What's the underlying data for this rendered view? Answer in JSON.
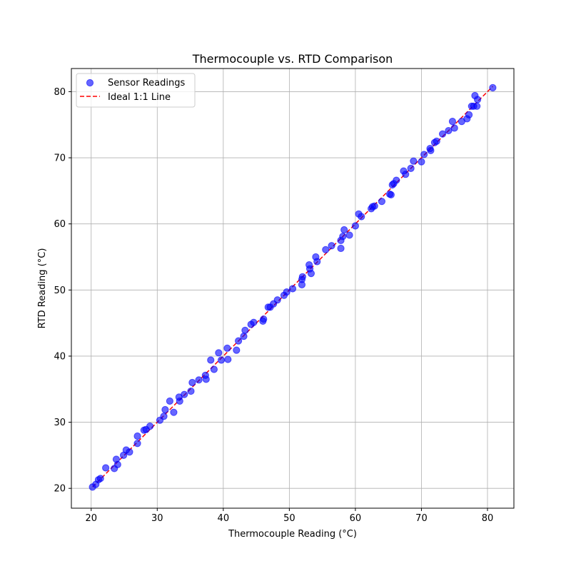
{
  "chart_data": {
    "type": "scatter",
    "title": "Thermocouple vs. RTD Comparison",
    "xlabel": "Thermocouple Reading (°C)",
    "ylabel": "RTD Reading (°C)",
    "xlim": [
      17.0,
      84.0
    ],
    "ylim": [
      17.0,
      83.5
    ],
    "xticks": [
      20,
      30,
      40,
      50,
      60,
      70,
      80
    ],
    "yticks": [
      20,
      30,
      40,
      50,
      60,
      70,
      80
    ],
    "grid": true,
    "legend_position": "top-left",
    "series": [
      {
        "name": "Sensor Readings",
        "kind": "scatter",
        "color": "#0000ff",
        "points": [
          [
            20.2,
            20.2
          ],
          [
            20.7,
            20.6
          ],
          [
            21.1,
            21.3
          ],
          [
            21.4,
            21.5
          ],
          [
            22.2,
            23.1
          ],
          [
            23.5,
            23.0
          ],
          [
            23.8,
            24.4
          ],
          [
            24.0,
            23.6
          ],
          [
            24.9,
            25.0
          ],
          [
            25.3,
            25.8
          ],
          [
            25.8,
            25.5
          ],
          [
            27.0,
            26.8
          ],
          [
            27.0,
            27.9
          ],
          [
            28.0,
            28.8
          ],
          [
            28.3,
            28.9
          ],
          [
            28.9,
            29.4
          ],
          [
            30.4,
            30.3
          ],
          [
            31.0,
            30.9
          ],
          [
            31.2,
            31.9
          ],
          [
            31.9,
            33.2
          ],
          [
            32.5,
            31.5
          ],
          [
            33.3,
            33.8
          ],
          [
            33.4,
            33.2
          ],
          [
            34.1,
            34.2
          ],
          [
            35.1,
            34.7
          ],
          [
            35.3,
            36.0
          ],
          [
            36.3,
            36.4
          ],
          [
            37.3,
            37.1
          ],
          [
            37.4,
            36.5
          ],
          [
            38.1,
            39.4
          ],
          [
            38.6,
            38.0
          ],
          [
            39.3,
            40.5
          ],
          [
            39.7,
            39.4
          ],
          [
            40.6,
            41.2
          ],
          [
            40.7,
            39.5
          ],
          [
            42.0,
            40.9
          ],
          [
            42.3,
            42.3
          ],
          [
            43.1,
            43.0
          ],
          [
            43.3,
            43.9
          ],
          [
            44.2,
            44.8
          ],
          [
            44.6,
            45.1
          ],
          [
            46.0,
            45.3
          ],
          [
            46.1,
            45.6
          ],
          [
            46.8,
            47.4
          ],
          [
            47.1,
            47.4
          ],
          [
            47.6,
            47.9
          ],
          [
            48.2,
            48.5
          ],
          [
            49.2,
            49.2
          ],
          [
            49.6,
            49.7
          ],
          [
            50.5,
            50.2
          ],
          [
            51.9,
            50.8
          ],
          [
            51.9,
            51.6
          ],
          [
            52.0,
            52.0
          ],
          [
            53.0,
            53.8
          ],
          [
            53.1,
            53.2
          ],
          [
            53.3,
            52.5
          ],
          [
            54.0,
            55.0
          ],
          [
            54.2,
            54.3
          ],
          [
            55.5,
            56.1
          ],
          [
            56.4,
            56.7
          ],
          [
            57.8,
            56.3
          ],
          [
            57.8,
            57.5
          ],
          [
            58.1,
            58.1
          ],
          [
            58.3,
            59.1
          ],
          [
            59.1,
            58.3
          ],
          [
            60.0,
            59.7
          ],
          [
            60.5,
            61.5
          ],
          [
            60.9,
            61.1
          ],
          [
            62.4,
            62.3
          ],
          [
            62.6,
            62.6
          ],
          [
            62.9,
            62.7
          ],
          [
            64.0,
            63.4
          ],
          [
            65.2,
            64.5
          ],
          [
            65.4,
            64.4
          ],
          [
            65.6,
            65.9
          ],
          [
            65.8,
            66.1
          ],
          [
            66.2,
            66.6
          ],
          [
            67.3,
            68.0
          ],
          [
            67.6,
            67.5
          ],
          [
            68.4,
            68.4
          ],
          [
            68.8,
            69.5
          ],
          [
            70.0,
            69.4
          ],
          [
            70.4,
            70.5
          ],
          [
            71.3,
            71.4
          ],
          [
            71.4,
            71.1
          ],
          [
            72.0,
            72.3
          ],
          [
            72.3,
            72.5
          ],
          [
            73.2,
            73.6
          ],
          [
            74.1,
            74.1
          ],
          [
            74.7,
            75.5
          ],
          [
            75.0,
            74.5
          ],
          [
            76.1,
            75.5
          ],
          [
            76.9,
            75.9
          ],
          [
            77.2,
            76.5
          ],
          [
            77.6,
            77.8
          ],
          [
            77.9,
            77.8
          ],
          [
            78.1,
            79.4
          ],
          [
            78.4,
            77.8
          ],
          [
            78.5,
            78.8
          ],
          [
            80.8,
            80.6
          ]
        ]
      },
      {
        "name": "Ideal 1:1 Line",
        "kind": "line",
        "color": "#ff0000",
        "dashed": true,
        "points": [
          [
            20.2,
            20.2
          ],
          [
            80.8,
            80.8
          ]
        ]
      }
    ]
  }
}
